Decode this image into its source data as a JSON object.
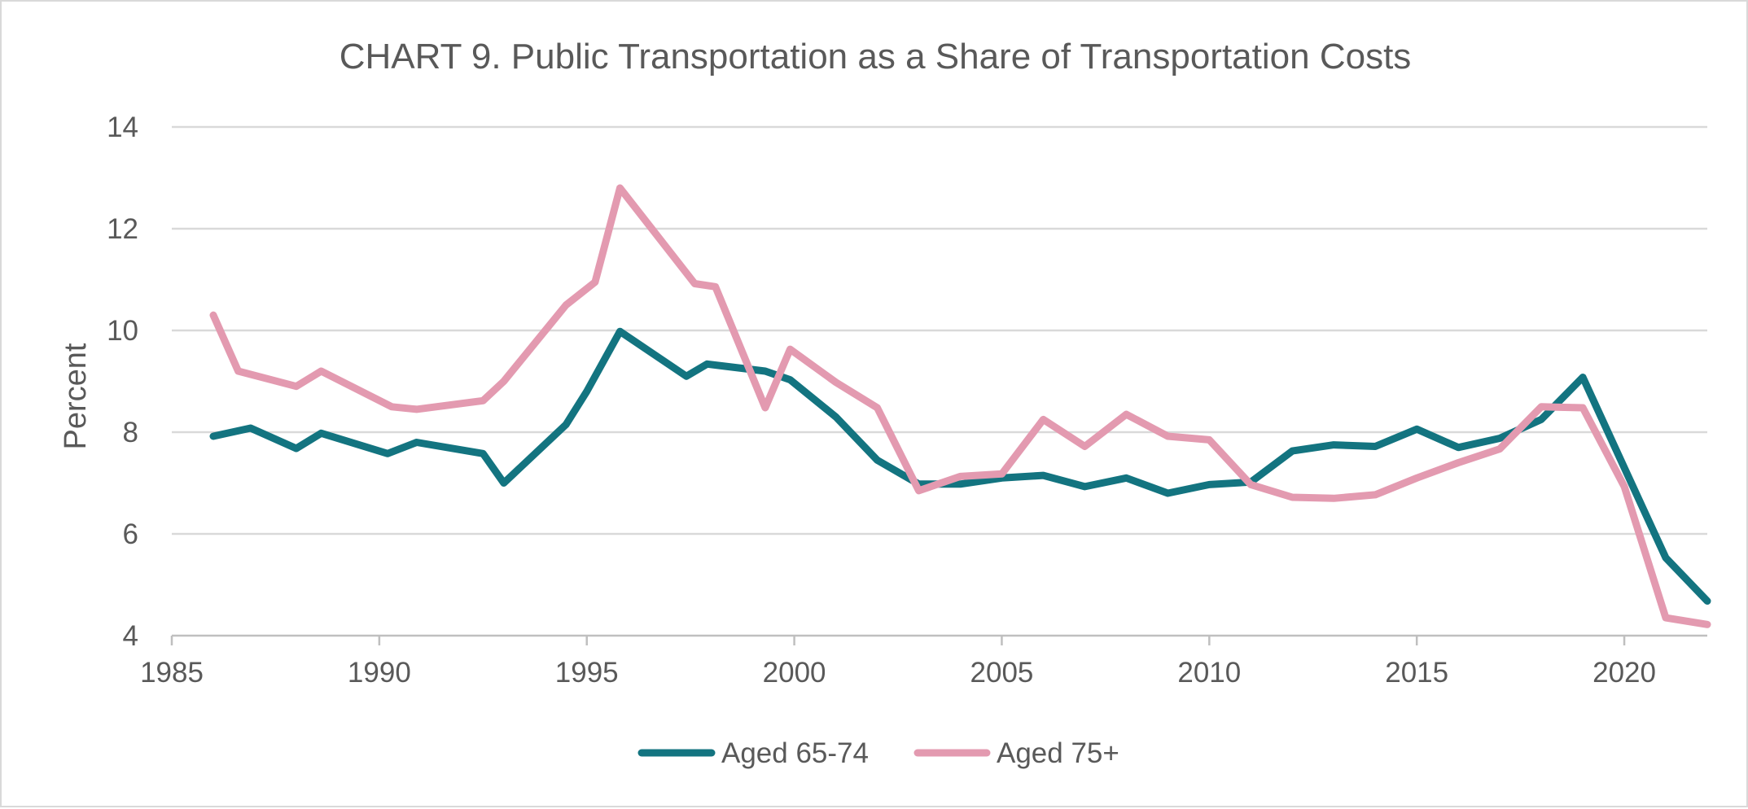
{
  "chart_data": {
    "type": "line",
    "title": "CHART 9. Public Transportation as a Share of Transportation Costs",
    "xlabel": "",
    "ylabel": "Percent",
    "xlim": [
      1985,
      2022
    ],
    "ylim": [
      4,
      14
    ],
    "x_ticks": [
      1985,
      1990,
      1995,
      2000,
      2005,
      2010,
      2015,
      2020
    ],
    "y_ticks": [
      4,
      6,
      8,
      10,
      12,
      14
    ],
    "grid": "horizontal",
    "legend_position": "bottom",
    "series": [
      {
        "name": "Aged 65-74",
        "color": "#137480",
        "points": [
          [
            1986.0,
            7.92
          ],
          [
            1986.9,
            8.08
          ],
          [
            1988.0,
            7.68
          ],
          [
            1988.6,
            7.98
          ],
          [
            1990.2,
            7.58
          ],
          [
            1990.9,
            7.8
          ],
          [
            1992.5,
            7.58
          ],
          [
            1993.0,
            7.0
          ],
          [
            1994.5,
            8.15
          ],
          [
            1995.0,
            8.8
          ],
          [
            1995.8,
            9.98
          ],
          [
            1997.4,
            9.1
          ],
          [
            1997.9,
            9.34
          ],
          [
            1999.3,
            9.2
          ],
          [
            1999.9,
            9.03
          ],
          [
            2001.0,
            8.3
          ],
          [
            2002.0,
            7.45
          ],
          [
            2003.0,
            6.98
          ],
          [
            2004.0,
            6.98
          ],
          [
            2005.0,
            7.1
          ],
          [
            2006.0,
            7.15
          ],
          [
            2007.0,
            6.93
          ],
          [
            2008.0,
            7.1
          ],
          [
            2009.0,
            6.8
          ],
          [
            2010.0,
            6.97
          ],
          [
            2011.0,
            7.02
          ],
          [
            2012.0,
            7.63
          ],
          [
            2013.0,
            7.75
          ],
          [
            2014.0,
            7.72
          ],
          [
            2015.0,
            8.06
          ],
          [
            2016.0,
            7.7
          ],
          [
            2017.0,
            7.88
          ],
          [
            2018.0,
            8.25
          ],
          [
            2019.0,
            9.08
          ],
          [
            2020.0,
            7.3
          ],
          [
            2021.0,
            5.53
          ],
          [
            2022.0,
            4.68
          ]
        ]
      },
      {
        "name": "Aged 75+",
        "color": "#e39ab0",
        "points": [
          [
            1986.0,
            10.3
          ],
          [
            1986.6,
            9.2
          ],
          [
            1988.0,
            8.9
          ],
          [
            1988.6,
            9.2
          ],
          [
            1990.3,
            8.5
          ],
          [
            1990.9,
            8.45
          ],
          [
            1992.5,
            8.62
          ],
          [
            1993.0,
            9.0
          ],
          [
            1994.5,
            10.5
          ],
          [
            1995.2,
            10.95
          ],
          [
            1995.8,
            12.8
          ],
          [
            1997.6,
            10.92
          ],
          [
            1998.1,
            10.86
          ],
          [
            1999.3,
            8.48
          ],
          [
            1999.9,
            9.63
          ],
          [
            2001.0,
            8.98
          ],
          [
            2002.0,
            8.48
          ],
          [
            2003.0,
            6.85
          ],
          [
            2004.0,
            7.13
          ],
          [
            2005.0,
            7.18
          ],
          [
            2006.0,
            8.25
          ],
          [
            2007.0,
            7.72
          ],
          [
            2008.0,
            8.35
          ],
          [
            2009.0,
            7.92
          ],
          [
            2010.0,
            7.85
          ],
          [
            2011.0,
            6.97
          ],
          [
            2012.0,
            6.72
          ],
          [
            2013.0,
            6.7
          ],
          [
            2014.0,
            6.77
          ],
          [
            2015.0,
            7.1
          ],
          [
            2016.0,
            7.4
          ],
          [
            2017.0,
            7.67
          ],
          [
            2018.0,
            8.5
          ],
          [
            2019.0,
            8.48
          ],
          [
            2020.0,
            6.93
          ],
          [
            2021.0,
            4.35
          ],
          [
            2022.0,
            4.22
          ]
        ]
      }
    ]
  }
}
